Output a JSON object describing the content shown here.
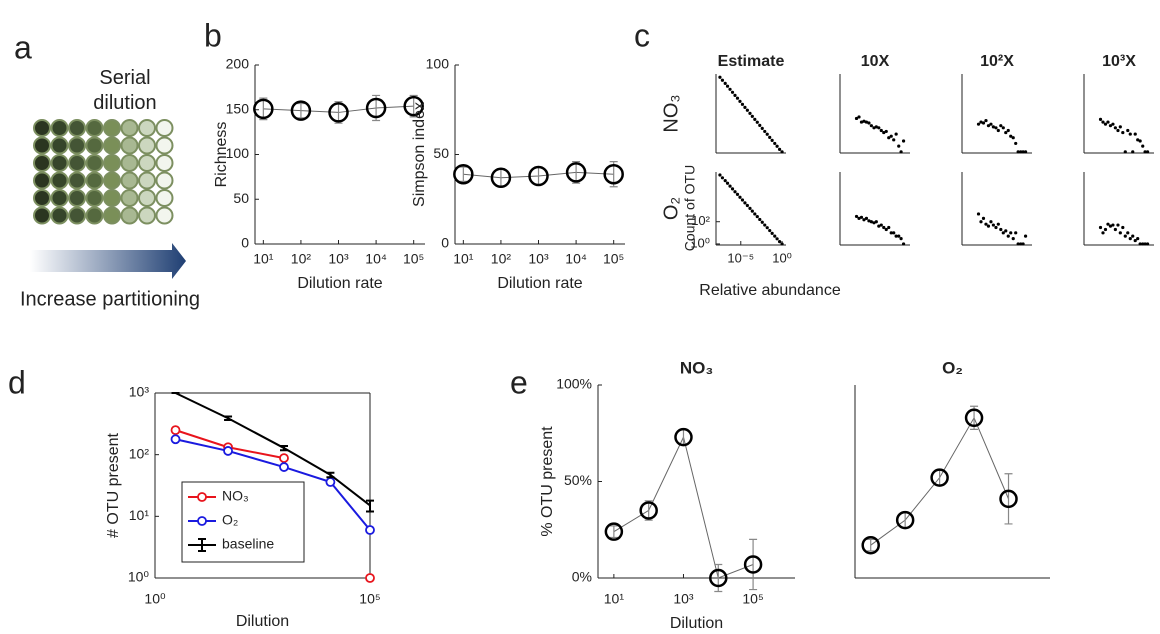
{
  "panel_labels": [
    "a",
    "b",
    "c",
    "d",
    "e"
  ],
  "diagram": {
    "title": "Serial dilution",
    "caption": "Increase partitioning"
  },
  "chart_data": [
    {
      "type": "errorbar",
      "xlabel": "Dilution rate",
      "ylabel": "Richness",
      "xscale": "log",
      "x": [
        10,
        100,
        1000,
        10000,
        100000
      ],
      "values": [
        151,
        149,
        147,
        152,
        154
      ],
      "errors": [
        12,
        8,
        12,
        14,
        12
      ],
      "xlim": [
        6,
        200000
      ],
      "ylim": [
        0,
        200
      ],
      "xticks": [
        {
          "value": 10,
          "label": "10¹"
        },
        {
          "value": 100,
          "label": "10²"
        },
        {
          "value": 1000,
          "label": "10³"
        },
        {
          "value": 10000,
          "label": "10⁴"
        },
        {
          "value": 100000,
          "label": "10⁵"
        }
      ],
      "yticks": [
        0,
        50,
        100,
        150,
        200
      ],
      "color": "#000000"
    },
    {
      "type": "errorbar",
      "xlabel": "Dilution rate",
      "ylabel": "Simpson index",
      "xscale": "log",
      "x": [
        10,
        100,
        1000,
        10000,
        100000
      ],
      "values": [
        39,
        37,
        38,
        40,
        39
      ],
      "errors": [
        4,
        5,
        5,
        6,
        7
      ],
      "xlim": [
        6,
        200000
      ],
      "ylim": [
        0,
        100
      ],
      "xticks": [
        {
          "value": 10,
          "label": "10¹"
        },
        {
          "value": 100,
          "label": "10²"
        },
        {
          "value": 1000,
          "label": "10³"
        },
        {
          "value": 10000,
          "label": "10⁴"
        },
        {
          "value": 100000,
          "label": "10⁵"
        }
      ],
      "yticks": [
        0,
        50,
        100
      ],
      "color": "#000000"
    },
    {
      "type": "scatter-grid",
      "xlabel": "Relative abundance",
      "ylabel": "Count of OTU",
      "columns": [
        "Estimate",
        "10X",
        "10²X",
        "10³X"
      ],
      "rows": [
        "NO₃",
        "O₂"
      ],
      "xscale": "log",
      "yscale": "log",
      "xlim": [
        1e-08,
        3
      ],
      "ylim": [
        0.8,
        3000000
      ],
      "xticks": [
        {
          "value": 1e-05,
          "label": "10⁻⁵"
        },
        {
          "value": 1,
          "label": "10⁰"
        }
      ],
      "yticks": [
        {
          "value": 1,
          "label": "10⁰"
        },
        {
          "value": 100,
          "label": "10²"
        }
      ],
      "color": "#000000",
      "panels": [
        {
          "x": [
            3e-08,
            6e-08,
            1.3e-07,
            2.5e-07,
            5e-07,
            1e-06,
            2e-06,
            4e-06,
            8e-06,
            1.6e-05,
            3.2e-05,
            6.3e-05,
            0.00013,
            0.00025,
            0.0005,
            0.001,
            0.002,
            0.004,
            0.008,
            0.016,
            0.032,
            0.063,
            0.13,
            0.25,
            0.5,
            1
          ],
          "y": [
            1600000,
            900000,
            500000,
            290000,
            160000,
            90000,
            50000,
            29000,
            16000,
            9000,
            5000,
            2900,
            1600,
            900,
            500,
            290,
            160,
            90,
            50,
            29,
            16,
            9,
            5,
            2.9,
            1.6,
            1
          ]
        },
        {
          "x": [
            1e-06,
            2e-06,
            4e-06,
            8e-06,
            1.6e-05,
            3.2e-05,
            6.3e-05,
            0.00013,
            0.00025,
            0.0005,
            0.001,
            0.002,
            0.004,
            0.008,
            0.016,
            0.032,
            0.063,
            0.13,
            0.25,
            0.5
          ],
          "y": [
            600,
            800,
            300,
            350,
            300,
            250,
            150,
            100,
            120,
            100,
            60,
            40,
            50,
            15,
            20,
            10,
            30,
            3,
            1,
            8
          ]
        },
        {
          "x": [
            1e-06,
            2e-06,
            4e-06,
            8e-06,
            1.6e-05,
            3.2e-05,
            6.3e-05,
            0.00013,
            0.00025,
            0.0005,
            0.001,
            0.002,
            0.004,
            0.008,
            0.016,
            0.032,
            0.063,
            0.13,
            0.25,
            0.5
          ],
          "y": [
            200,
            300,
            250,
            400,
            150,
            200,
            120,
            100,
            60,
            150,
            100,
            40,
            60,
            20,
            15,
            5,
            1,
            1,
            1,
            1
          ]
        },
        {
          "x": [
            1e-06,
            2e-06,
            4e-06,
            8e-06,
            1.6e-05,
            3.2e-05,
            6.3e-05,
            0.00013,
            0.00025,
            0.0005,
            0.001,
            0.002,
            0.004,
            0.008,
            0.016,
            0.032,
            0.063,
            0.13,
            0.25,
            0.5
          ],
          "y": [
            500,
            300,
            200,
            300,
            150,
            200,
            100,
            60,
            120,
            40,
            1,
            60,
            30,
            1,
            30,
            10,
            8,
            3,
            1,
            1
          ]
        },
        {
          "x": [
            3e-08,
            6e-08,
            1.3e-07,
            2.5e-07,
            5e-07,
            1e-06,
            2e-06,
            4e-06,
            8e-06,
            1.6e-05,
            3.2e-05,
            6.3e-05,
            0.00013,
            0.00025,
            0.0005,
            0.001,
            0.002,
            0.004,
            0.008,
            0.016,
            0.032,
            0.063,
            0.13,
            0.25,
            0.5,
            1
          ],
          "y": [
            1600000,
            900000,
            500000,
            290000,
            160000,
            90000,
            50000,
            29000,
            16000,
            9000,
            5000,
            2900,
            1600,
            900,
            500,
            290,
            160,
            90,
            50,
            29,
            16,
            9,
            5,
            2.9,
            1.6,
            1
          ]
        },
        {
          "x": [
            1e-06,
            2e-06,
            4e-06,
            8e-06,
            1.6e-05,
            3.2e-05,
            6.3e-05,
            0.00013,
            0.00025,
            0.0005,
            0.001,
            0.002,
            0.004,
            0.008,
            0.016,
            0.032,
            0.063,
            0.13,
            0.25,
            0.5
          ],
          "y": [
            300,
            200,
            250,
            150,
            200,
            120,
            100,
            80,
            100,
            40,
            50,
            30,
            20,
            30,
            10,
            10,
            5,
            5,
            3,
            1
          ]
        },
        {
          "x": [
            1e-06,
            2e-06,
            4e-06,
            8e-06,
            1.6e-05,
            3.2e-05,
            6.3e-05,
            0.00013,
            0.00025,
            0.0005,
            0.001,
            0.002,
            0.004,
            0.008,
            0.016,
            0.032,
            0.063,
            0.13,
            0.25,
            0.5
          ],
          "y": [
            500,
            100,
            200,
            60,
            40,
            100,
            50,
            30,
            60,
            20,
            10,
            15,
            5,
            10,
            3,
            10,
            1,
            1,
            1,
            5
          ]
        },
        {
          "x": [
            1e-06,
            2e-06,
            4e-06,
            8e-06,
            1.6e-05,
            3.2e-05,
            6.3e-05,
            0.00013,
            0.00025,
            0.0005,
            0.001,
            0.002,
            0.004,
            0.008,
            0.016,
            0.032,
            0.063,
            0.13,
            0.25,
            0.5
          ],
          "y": [
            30,
            10,
            20,
            60,
            40,
            50,
            20,
            50,
            10,
            30,
            5,
            10,
            3,
            5,
            2,
            3,
            1,
            1,
            1,
            1
          ]
        }
      ]
    },
    {
      "type": "line",
      "xlabel": "Dilution",
      "ylabel": "# OTU present",
      "xscale": "log",
      "yscale": "log",
      "x": [
        3,
        50,
        1000,
        12000,
        100000
      ],
      "xlim": [
        1,
        100000
      ],
      "ylim": [
        1,
        1000
      ],
      "xticks": [
        {
          "value": 1,
          "label": "10⁰"
        },
        {
          "value": 100000,
          "label": "10⁵"
        }
      ],
      "yticks": [
        {
          "value": 1,
          "label": "10⁰"
        },
        {
          "value": 10,
          "label": "10¹"
        },
        {
          "value": 100,
          "label": "10²"
        },
        {
          "value": 1000,
          "label": "10³"
        }
      ],
      "legend": "lower left",
      "series": [
        {
          "name": "NO₃",
          "color": "#e8141c",
          "values": [
            250,
            132,
            88,
            null,
            1
          ]
        },
        {
          "name": "O₂",
          "color": "#1a1adf",
          "values": [
            178,
            115,
            63,
            36,
            6
          ]
        },
        {
          "name": "baseline",
          "color": "#000000",
          "values": [
            1000,
            390,
            128,
            47,
            15
          ],
          "errors": [
            0,
            25,
            10,
            4,
            3
          ]
        }
      ]
    },
    {
      "type": "errorbar",
      "title": "NO₃",
      "xlabel": "Dilution",
      "ylabel": "% OTU present",
      "xscale": "log",
      "x": [
        10,
        100,
        1000,
        10000,
        100000
      ],
      "values": [
        24,
        35,
        73,
        0,
        7
      ],
      "errors": [
        3,
        5,
        4,
        7,
        13
      ],
      "xlim": [
        3.5,
        1600000
      ],
      "ylim": [
        0,
        100
      ],
      "xticks": [
        {
          "value": 10,
          "label": "10¹"
        },
        {
          "value": 1000,
          "label": "10³"
        },
        {
          "value": 100000,
          "label": "10⁵"
        }
      ],
      "yticks": [
        {
          "value": 0,
          "label": "0%"
        },
        {
          "value": 50,
          "label": "50%"
        },
        {
          "value": 100,
          "label": "100%"
        }
      ],
      "color": "#000000"
    },
    {
      "type": "errorbar",
      "title": "O₂",
      "xscale": "log",
      "x": [
        10,
        100,
        1000,
        10000,
        100000
      ],
      "values": [
        17,
        30,
        52,
        83,
        41
      ],
      "errors": [
        3,
        4,
        4,
        6,
        13
      ],
      "xlim": [
        3.5,
        1600000
      ],
      "ylim": [
        0,
        100
      ],
      "color": "#000000"
    }
  ]
}
